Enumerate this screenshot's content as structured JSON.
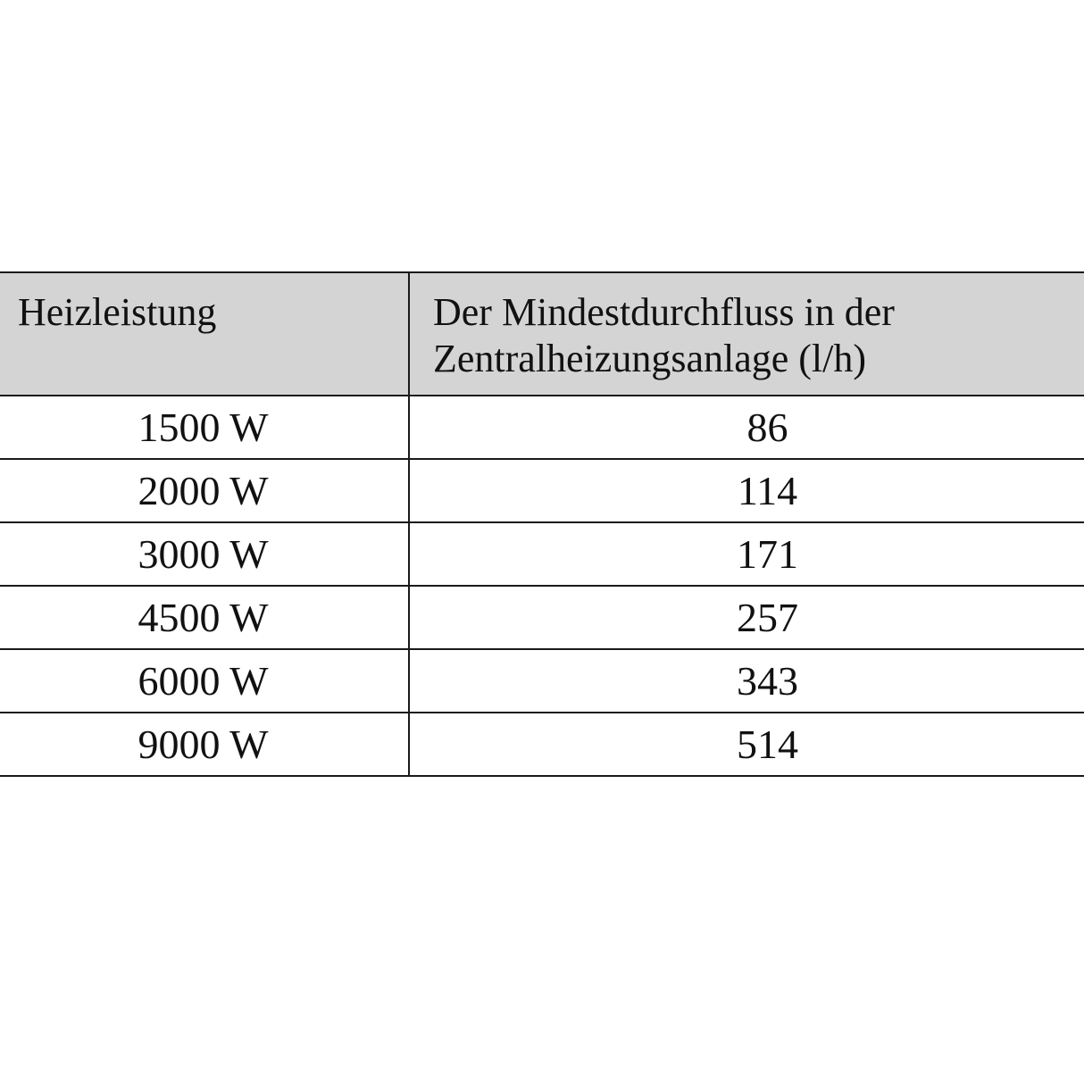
{
  "table": {
    "headers": [
      "Heizleistung",
      "Der Mindestdurchfluss in der Zentralheizungsanlage (l/h)"
    ],
    "rows": [
      [
        "1500 W",
        "86"
      ],
      [
        "2000 W",
        "114"
      ],
      [
        "3000 W",
        "171"
      ],
      [
        "4500 W",
        "257"
      ],
      [
        "6000 W",
        "343"
      ],
      [
        "9000 W",
        "514"
      ]
    ],
    "header_background": "#d4d4d4"
  }
}
